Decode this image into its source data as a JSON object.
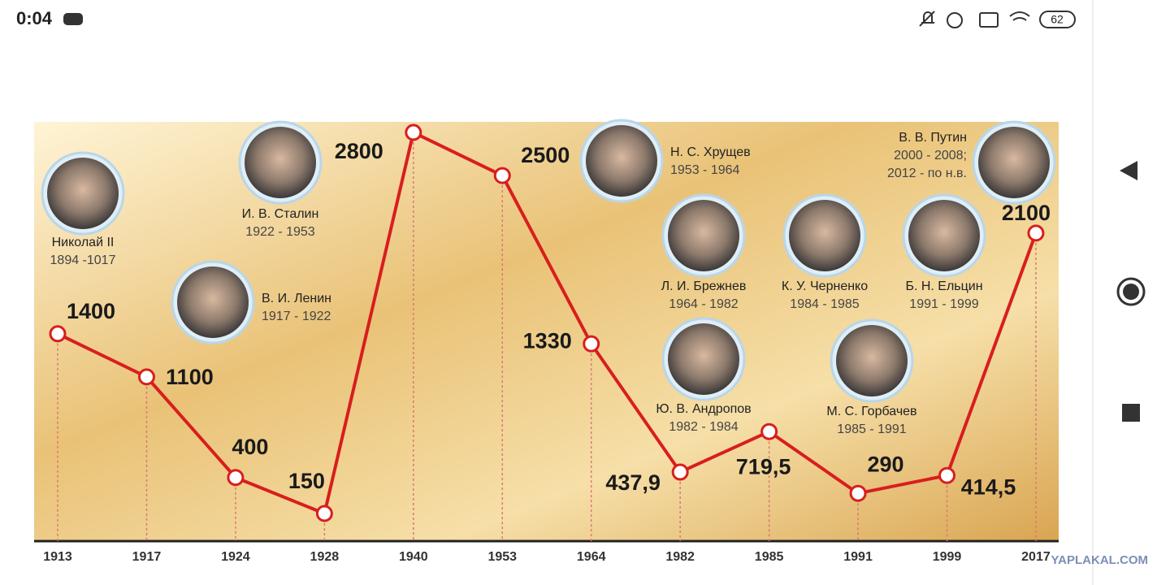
{
  "status_bar": {
    "time": "0:04",
    "battery": "62"
  },
  "chart_data": {
    "type": "line",
    "categories": [
      "1913",
      "1917",
      "1924",
      "1928",
      "1940",
      "1953",
      "1964",
      "1982",
      "1985",
      "1991",
      "1999",
      "2017"
    ],
    "series": [
      {
        "color": "#d81e1e",
        "values": [
          1400,
          1100,
          400,
          150,
          2800,
          2500,
          1330,
          437.9,
          719.5,
          290,
          414.5,
          2100
        ],
        "value_labels": [
          "1400",
          "1100",
          "400",
          "150",
          "2800",
          "2500",
          "1330",
          "437,9",
          "719,5",
          "290",
          "414,5",
          "2100"
        ]
      }
    ],
    "leaders": [
      {
        "name": "Николай II",
        "years": [
          "1894 -1017"
        ]
      },
      {
        "name": "В. И. Ленин",
        "years": [
          "1917 - 1922"
        ]
      },
      {
        "name": "И. В. Сталин",
        "years": [
          "1922 - 1953"
        ]
      },
      {
        "name": "Н. С. Хрущев",
        "years": [
          "1953 - 1964"
        ]
      },
      {
        "name": "Л. И. Брежнев",
        "years": [
          "1964 - 1982"
        ]
      },
      {
        "name": "Ю. В. Андропов",
        "years": [
          "1982 - 1984"
        ]
      },
      {
        "name": "К. У. Черненко",
        "years": [
          "1984 - 1985"
        ]
      },
      {
        "name": "М. С. Горбачев",
        "years": [
          "1985 - 1991"
        ]
      },
      {
        "name": "Б. Н. Ельцин",
        "years": [
          "1991 - 1999"
        ]
      },
      {
        "name": "В. В. Путин",
        "years": [
          "2000 - 2008;",
          "2012 - по н.в."
        ]
      }
    ],
    "watermark": "YAPLAKAL.COM"
  }
}
